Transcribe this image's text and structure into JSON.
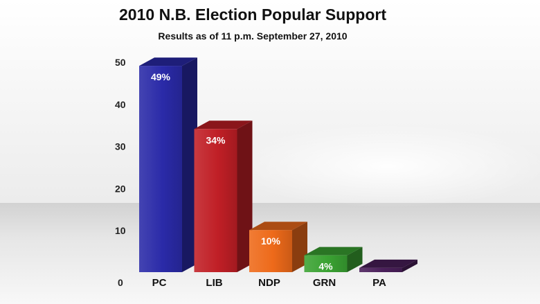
{
  "chart_data": {
    "type": "bar",
    "title": "2010 N.B. Election Popular Support",
    "subtitle": "Results as of 11 p.m. September 27, 2010",
    "xlabel": "",
    "ylabel": "",
    "ylim": [
      0,
      50
    ],
    "yticks": [
      0,
      10,
      20,
      30,
      40,
      50
    ],
    "categories": [
      "PC",
      "LIB",
      "NDP",
      "GRN",
      "PA"
    ],
    "values": [
      49,
      34,
      10,
      4,
      1
    ],
    "data_labels": [
      "49%",
      "34%",
      "10%",
      "4%",
      ""
    ],
    "colors": [
      "#2a2aa8",
      "#c01f26",
      "#ee6a1a",
      "#3aa232",
      "#4a1f5a"
    ],
    "grid": false,
    "legend": "none"
  }
}
